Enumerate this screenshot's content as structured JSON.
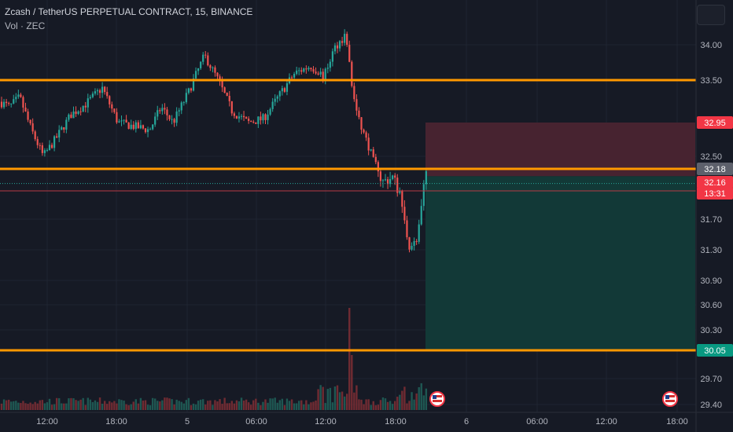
{
  "header": {
    "symbol_title": "Zcash / TetherUS PERPETUAL CONTRACT, 15, BINANCE",
    "volume_label": "Vol · ZEC"
  },
  "chart_data": {
    "type": "candlestick",
    "y_ticks": [
      "34.00",
      "33.50",
      "32.50",
      "31.70",
      "31.30",
      "30.90",
      "30.60",
      "30.30",
      "29.70",
      "29.40"
    ],
    "x_ticks": [
      "12:00",
      "18:00",
      "5",
      "06:00",
      "12:00",
      "18:00",
      "6",
      "06:00",
      "12:00",
      "18:00"
    ],
    "horizontal_levels": [
      33.5,
      32.18,
      30.05
    ],
    "price_labels": {
      "stop": "32.95",
      "level": "32.18",
      "last_price": "32.16",
      "countdown": "13:31",
      "target": "30.05"
    },
    "position": {
      "entry": 32.11,
      "stop": 32.95,
      "target": 30.05,
      "side": "short"
    },
    "colors": {
      "up": "#26a69a",
      "down": "#ef5350",
      "level": "#ff9800",
      "stop_zone": "#4a2430",
      "target_zone": "#123b38",
      "background": "#161a25"
    }
  }
}
